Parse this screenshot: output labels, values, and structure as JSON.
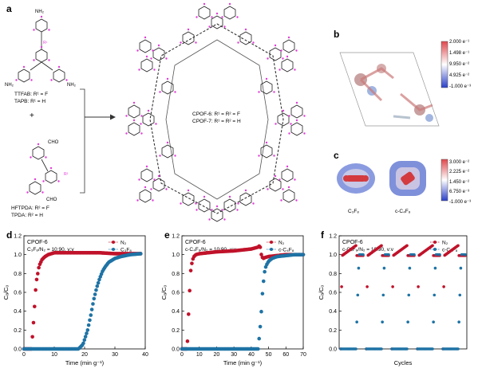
{
  "panels": {
    "a": "a",
    "b": "b",
    "c": "c",
    "d": "d",
    "e": "e",
    "f": "f"
  },
  "monomers": {
    "amine_line1": "TTFAB: R¹ = F",
    "amine_line2": "TAPB: R¹ = H",
    "plus": "+",
    "aldehyde_line1": "HFTPDA: R² = F",
    "aldehyde_line2": "TPDA: R² = H",
    "nh2": "NH₂",
    "cho": "CHO",
    "r1": "R¹",
    "r2": "R²"
  },
  "framework": {
    "line1": "CPOF-6: R¹ = R² = F",
    "line2": "CPOF-7: R¹ = R² = H"
  },
  "colorbar_b": [
    "2.000 e⁻¹",
    "1.498 e⁻¹",
    "9.950 e⁻²",
    "4.925 e⁻²",
    "-1.000 e⁻³"
  ],
  "colorbar_c": [
    "3.000 e⁻²",
    "2.225 e⁻²",
    "1.450 e⁻²",
    "6.750 e⁻³",
    "-1.000 e⁻³"
  ],
  "molecules": [
    "C₃F₈",
    "c-C₄F₈"
  ],
  "colors": {
    "n2": "#c0122a",
    "gas": "#1e73a5",
    "bar_top": "#e0474c",
    "bar_bottom": "#2a3fc8"
  },
  "chart_data": [
    {
      "type": "scatter",
      "panel": "d",
      "title": "CPOF-6",
      "subtitle": "C₃F₈/N₂ = 10:90, v:v",
      "xlabel": "Time (min g⁻¹)",
      "ylabel": "Cₐ/C₀",
      "xlim": [
        0,
        40
      ],
      "ylim": [
        0,
        1.2
      ],
      "xticks": [
        "0",
        "10",
        "20",
        "30",
        "40"
      ],
      "yticks": [
        "0.0",
        "0.2",
        "0.4",
        "0.6",
        "0.8",
        "1.0",
        "1.2"
      ],
      "legend": "top-right",
      "series": [
        {
          "name": "N₂",
          "color": "#c0122a",
          "x": [
            0,
            2.5,
            3.2,
            4,
            5,
            6,
            7,
            8,
            9,
            10,
            12,
            15,
            20,
            25,
            30,
            35,
            38.5
          ],
          "y": [
            0,
            0,
            0.3,
            0.7,
            0.88,
            0.95,
            0.98,
            1.0,
            1.01,
            1.02,
            1.02,
            1.02,
            1.02,
            1.02,
            1.01,
            1.01,
            1.01
          ]
        },
        {
          "name": "C₃F₈",
          "color": "#1e73a5",
          "x": [
            0,
            18,
            19.5,
            21,
            22,
            23,
            24,
            25,
            26,
            27,
            28,
            30,
            32,
            35,
            38.5
          ],
          "y": [
            0,
            0,
            0.05,
            0.2,
            0.35,
            0.52,
            0.65,
            0.75,
            0.83,
            0.88,
            0.92,
            0.96,
            0.98,
            1.0,
            1.01
          ]
        }
      ]
    },
    {
      "type": "scatter",
      "panel": "e",
      "title": "CPOF-6",
      "subtitle": "c-C₄F₈/N₂ = 10:90, v:v",
      "xlabel": "Time (min g⁻¹)",
      "ylabel": "Cₐ/C₀",
      "xlim": [
        0,
        70
      ],
      "ylim": [
        0,
        1.2
      ],
      "xticks": [
        "0",
        "10",
        "20",
        "30",
        "40",
        "50",
        "60",
        "70"
      ],
      "yticks": [
        "0.0",
        "0.2",
        "0.4",
        "0.6",
        "0.8",
        "1.0",
        "1.2"
      ],
      "legend": "top-right",
      "series": [
        {
          "name": "N₂",
          "color": "#c0122a",
          "x": [
            0,
            3,
            4,
            5,
            6,
            7,
            8,
            10,
            15,
            20,
            30,
            40,
            44,
            45,
            46,
            47,
            48,
            50,
            55,
            60,
            65,
            70
          ],
          "y": [
            0,
            0,
            0.45,
            0.82,
            0.94,
            0.98,
            1.0,
            1.01,
            1.02,
            1.03,
            1.04,
            1.06,
            1.08,
            1.1,
            0.98,
            0.96,
            0.97,
            0.98,
            0.99,
            1.0,
            1.0,
            1.0
          ]
        },
        {
          "name": "c-C₄F₈",
          "color": "#1e73a5",
          "x": [
            0,
            44,
            45.5,
            46.5,
            47.5,
            48.5,
            50,
            52,
            55,
            60,
            65,
            70
          ],
          "y": [
            0,
            0,
            0.3,
            0.6,
            0.8,
            0.88,
            0.93,
            0.96,
            0.98,
            0.99,
            1.0,
            1.0
          ]
        }
      ]
    },
    {
      "type": "scatter",
      "panel": "f",
      "title": "CPOF-6",
      "subtitle": "c-C₄F₈/N₂ = 10:90, v:v",
      "xlabel": "Cycles",
      "ylabel": "Cₐ/C₀",
      "xlim": [
        0,
        5
      ],
      "ylim": [
        0,
        1.2
      ],
      "yticks": [
        "0.0",
        "0.2",
        "0.4",
        "0.6",
        "0.8",
        "1.0",
        "1.2"
      ],
      "legend": "top-right",
      "cycles": 5,
      "series": [
        {
          "name": "N₂",
          "color": "#c0122a",
          "peak": 1.1,
          "plateau": 0.99
        },
        {
          "name": "c-C₄F₈",
          "color": "#1e73a5",
          "plateau": 1.0
        }
      ]
    }
  ]
}
